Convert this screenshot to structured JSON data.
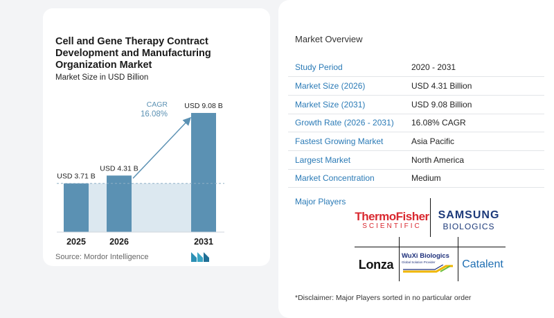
{
  "chart_data": {
    "type": "bar",
    "title": "Cell and Gene Therapy Contract Development and Manufacturing Organization Market",
    "subtitle": "Market Size in USD Billion",
    "categories": [
      "2025",
      "2026",
      "2031"
    ],
    "values": [
      3.71,
      4.31,
      9.08
    ],
    "value_labels": [
      "USD 3.71 B",
      "USD 4.31 B",
      "USD 9.08 B"
    ],
    "ylim": [
      0,
      10
    ],
    "cagr_label": "CAGR",
    "cagr_value": "16.08%",
    "colors": {
      "bar": "#5b91b3",
      "bar_top": "#74a6c4",
      "shade": "#dce8f0",
      "baseline": "#8fb0c5",
      "arrow": "#5b91b3",
      "cagr_text": "#5b91b3"
    }
  },
  "source": "Source:  Mordor Intelligence",
  "overview": {
    "title": "Market Overview",
    "rows": [
      {
        "label": "Study Period",
        "value": "2020 - 2031"
      },
      {
        "label": "Market Size (2026)",
        "value": "USD 4.31 Billion"
      },
      {
        "label": "Market Size (2031)",
        "value": "USD 9.08 Billion"
      },
      {
        "label": "Growth Rate (2026 - 2031)",
        "value": "16.08% CAGR"
      },
      {
        "label": "Fastest Growing Market",
        "value": "Asia Pacific"
      },
      {
        "label": "Largest Market",
        "value": "North America"
      },
      {
        "label": "Market Concentration",
        "value": "Medium"
      }
    ]
  },
  "major_players": {
    "label": "Major Players",
    "thermo": {
      "line1": "ThermoFisher",
      "line2": "SCIENTIFIC",
      "color": "#d9282f"
    },
    "samsung": {
      "line1": "SAMSUNG",
      "line2": "BIOLOGICS",
      "color": "#1d3a7a"
    },
    "lonza": {
      "text": "Lonza",
      "color": "#111111"
    },
    "wuxi": {
      "line1": "WuXi Biologics",
      "line2": "Global Solution Provider",
      "color": "#1d2f7a"
    },
    "catalent": {
      "text": "Catalent",
      "color": "#1f6fb3"
    }
  },
  "disclaimer": "*Disclaimer: Major Players sorted in no particular order"
}
